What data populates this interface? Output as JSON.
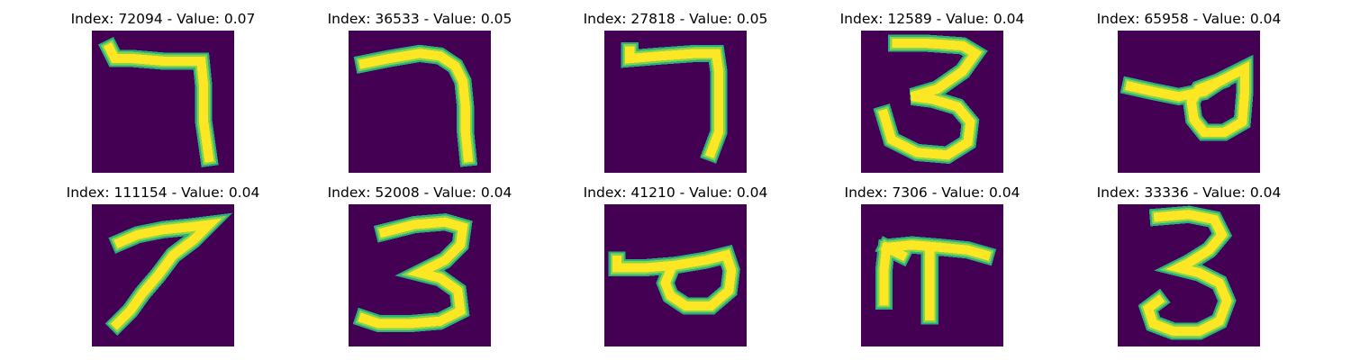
{
  "colors": {
    "background": "#440154",
    "stroke_core": "#fde725",
    "stroke_mid": "#86d549",
    "stroke_edge": "#2ab07f"
  },
  "panels": [
    {
      "title": "Index: 72094 - Value: 0.07",
      "digit": "7"
    },
    {
      "title": "Index: 36533 - Value: 0.05",
      "digit": "7"
    },
    {
      "title": "Index: 27818 - Value: 0.05",
      "digit": "7"
    },
    {
      "title": "Index: 12589 - Value: 0.04",
      "digit": "3"
    },
    {
      "title": "Index: 65958 - Value: 0.04",
      "digit": "9"
    },
    {
      "title": "Index: 111154 - Value: 0.04",
      "digit": "7"
    },
    {
      "title": "Index: 52008 - Value: 0.04",
      "digit": "3"
    },
    {
      "title": "Index: 41210 - Value: 0.04",
      "digit": "9"
    },
    {
      "title": "Index: 7306 - Value: 0.04",
      "digit": "7"
    },
    {
      "title": "Index: 33336 - Value: 0.04",
      "digit": "3"
    }
  ]
}
